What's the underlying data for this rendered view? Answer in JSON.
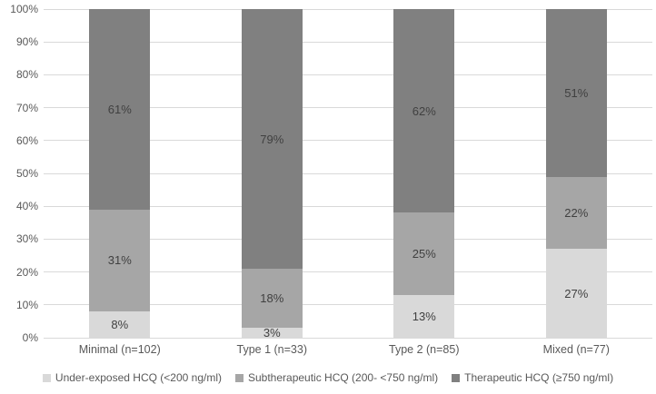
{
  "chart_data": {
    "type": "bar",
    "variant": "stacked-100-percent",
    "title": "",
    "xlabel": "",
    "ylabel": "",
    "ylim": [
      0,
      100
    ],
    "y_tick_step": 10,
    "y_tick_labels": [
      "0%",
      "10%",
      "20%",
      "30%",
      "40%",
      "50%",
      "60%",
      "70%",
      "80%",
      "90%",
      "100%"
    ],
    "grid": true,
    "legend_position": "bottom",
    "categories": [
      "Minimal (n=102)",
      "Type 1 (n=33)",
      "Type 2 (n=85)",
      "Mixed (n=77)"
    ],
    "series": [
      {
        "name": "Under-exposed HCQ (<200 ng/ml)",
        "color": "#d9d9d9",
        "values": [
          8,
          3,
          13,
          27
        ],
        "labels": [
          "8%",
          "3%",
          "13%",
          "27%"
        ]
      },
      {
        "name": "Subtherapeutic HCQ (200- <750 ng/ml)",
        "color": "#a6a6a6",
        "values": [
          31,
          18,
          25,
          22
        ],
        "labels": [
          "31%",
          "18%",
          "25%",
          "22%"
        ]
      },
      {
        "name": "Therapeutic HCQ (≥750 ng/ml)",
        "color": "#808080",
        "values": [
          61,
          79,
          62,
          51
        ],
        "labels": [
          "61%",
          "79%",
          "62%",
          "51%"
        ]
      }
    ],
    "colors": {
      "background": "#ffffff",
      "gridline": "#d9d9d9",
      "axis_text": "#595959",
      "data_label_text": "#404040"
    }
  }
}
